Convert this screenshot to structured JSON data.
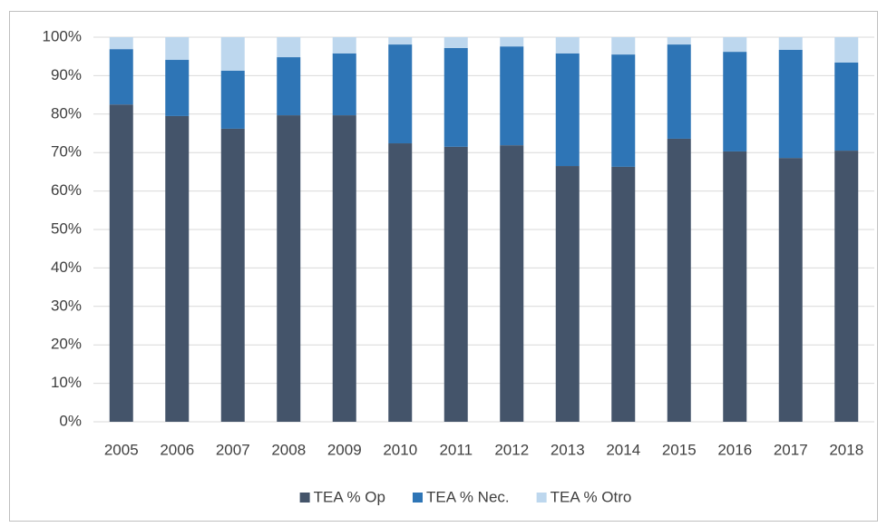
{
  "chart_data": {
    "type": "stacked_bar",
    "categories": [
      "2005",
      "2006",
      "2007",
      "2008",
      "2009",
      "2010",
      "2011",
      "2012",
      "2013",
      "2014",
      "2015",
      "2016",
      "2017",
      "2018"
    ],
    "series": [
      {
        "name": "TEA % Op",
        "color": "#44546a",
        "values": [
          82.5,
          79.5,
          76.2,
          79.7,
          79.7,
          72.4,
          71.5,
          71.9,
          66.5,
          66.3,
          73.6,
          70.3,
          68.6,
          70.5
        ]
      },
      {
        "name": "TEA % Nec.",
        "color": "#2e75b6",
        "values": [
          14.4,
          14.6,
          15.1,
          15.1,
          16.1,
          25.7,
          25.7,
          25.7,
          29.3,
          29.2,
          24.5,
          25.9,
          28.1,
          22.9
        ]
      },
      {
        "name": "TEA % Otro",
        "color": "#bdd7ee",
        "values": [
          3.1,
          5.9,
          8.7,
          5.2,
          4.2,
          1.9,
          2.8,
          2.4,
          4.2,
          4.5,
          1.9,
          3.8,
          3.3,
          6.6
        ]
      }
    ],
    "ylim": [
      0,
      100
    ],
    "yticks": [
      {
        "value": 0,
        "label": "0%"
      },
      {
        "value": 10,
        "label": "10%"
      },
      {
        "value": 20,
        "label": "20%"
      },
      {
        "value": 30,
        "label": "30%"
      },
      {
        "value": 40,
        "label": "40%"
      },
      {
        "value": 50,
        "label": "50%"
      },
      {
        "value": 60,
        "label": "60%"
      },
      {
        "value": 70,
        "label": "70%"
      },
      {
        "value": 80,
        "label": "80%"
      },
      {
        "value": 90,
        "label": "90%"
      },
      {
        "value": 100,
        "label": "100%"
      }
    ],
    "grid": true,
    "legend": "bottom"
  }
}
